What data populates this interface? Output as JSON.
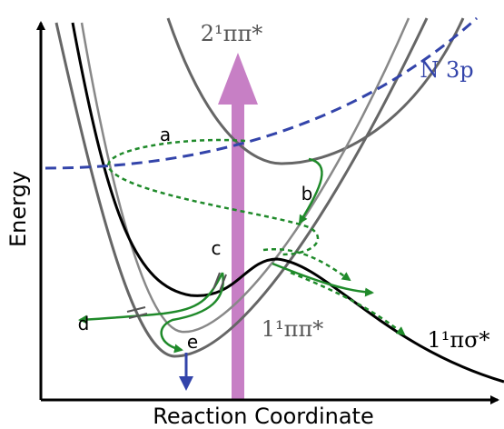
{
  "axes": {
    "y_label": "Energy",
    "x_label": "Reaction Coordinate"
  },
  "states": [
    {
      "label": "2¹ππ*"
    },
    {
      "label": "N 3p"
    },
    {
      "label": "1¹ππ*"
    },
    {
      "label": "1¹πσ*"
    }
  ],
  "pathways": [
    {
      "label": "a"
    },
    {
      "label": "b"
    },
    {
      "label": "c"
    },
    {
      "label": "d"
    },
    {
      "label": "e"
    }
  ]
}
